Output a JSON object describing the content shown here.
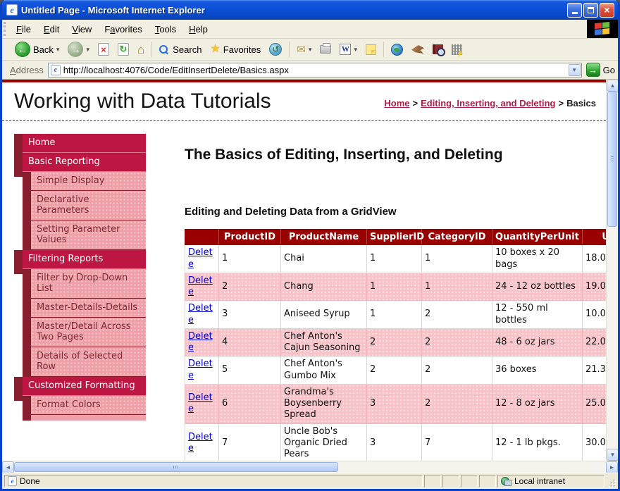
{
  "window": {
    "title": "Untitled Page - Microsoft Internet Explorer"
  },
  "menu": {
    "items": [
      {
        "pre": "",
        "key": "F",
        "post": "ile"
      },
      {
        "pre": "",
        "key": "E",
        "post": "dit"
      },
      {
        "pre": "",
        "key": "V",
        "post": "iew"
      },
      {
        "pre": "F",
        "key": "a",
        "post": "vorites"
      },
      {
        "pre": "",
        "key": "T",
        "post": "ools"
      },
      {
        "pre": "",
        "key": "H",
        "post": "elp"
      }
    ]
  },
  "toolbar": {
    "back": "Back",
    "search": "Search",
    "favorites": "Favorites"
  },
  "address": {
    "label": "Address",
    "url": "http://localhost:4076/Code/EditInsertDelete/Basics.aspx",
    "go": "Go"
  },
  "page": {
    "site_title": "Working with Data Tutorials",
    "breadcrumb": {
      "home": "Home",
      "sep": ">",
      "section": "Editing, Inserting, and Deleting",
      "current": "Basics"
    },
    "sidebar": [
      {
        "label": "Home",
        "level": 1
      },
      {
        "label": "Basic Reporting",
        "level": 1
      },
      {
        "label": "Simple Display",
        "level": 2
      },
      {
        "label": "Declarative Parameters",
        "level": 2
      },
      {
        "label": "Setting Parameter Values",
        "level": 2
      },
      {
        "label": "Filtering Reports",
        "level": 1
      },
      {
        "label": "Filter by Drop-Down List",
        "level": 2
      },
      {
        "label": "Master-Details-Details",
        "level": 2
      },
      {
        "label": "Master/Detail Across Two Pages",
        "level": 2
      },
      {
        "label": "Details of Selected Row",
        "level": 2
      },
      {
        "label": "Customized Formatting",
        "level": 1
      },
      {
        "label": "Format Colors",
        "level": 2
      }
    ],
    "heading": "The Basics of Editing, Inserting, and Deleting",
    "subheading": "Editing and Deleting Data from a GridView",
    "grid": {
      "action_label": "Delete",
      "columns": [
        "",
        "ProductID",
        "ProductName",
        "SupplierID",
        "CategoryID",
        "QuantityPerUnit",
        "Uni"
      ],
      "rows": [
        [
          "1",
          "Chai",
          "1",
          "1",
          "10 boxes x 20 bags",
          "18.0"
        ],
        [
          "2",
          "Chang",
          "1",
          "1",
          "24 - 12 oz bottles",
          "19.0"
        ],
        [
          "3",
          "Aniseed Syrup",
          "1",
          "2",
          "12 - 550 ml bottles",
          "10.0"
        ],
        [
          "4",
          "Chef Anton's Cajun Seasoning",
          "2",
          "2",
          "48 - 6 oz jars",
          "22.0"
        ],
        [
          "5",
          "Chef Anton's Gumbo Mix",
          "2",
          "2",
          "36 boxes",
          "21.3"
        ],
        [
          "6",
          "Grandma's Boysenberry Spread",
          "3",
          "2",
          "12 - 8 oz jars",
          "25.0"
        ],
        [
          "7",
          "Uncle Bob's Organic Dried Pears",
          "3",
          "7",
          "12 - 1 lb pkgs.",
          "30.0"
        ]
      ]
    }
  },
  "statusbar": {
    "status": "Done",
    "zone": "Local intranet"
  },
  "icons": {
    "ie_e": "e",
    "back": "←",
    "forward": "→",
    "stop": "×",
    "refresh": "↻",
    "home": "⌂",
    "star": "★",
    "history": "↺",
    "mail": "✉",
    "dropdown": "▾",
    "go_arrow": "→",
    "up": "▲",
    "down": "▼",
    "left": "◄",
    "right": "►",
    "close": "×"
  },
  "colors": {
    "title_header_red": "#990000",
    "nav_crimson": "#BE1642",
    "nav_dark_maroon": "#871F31",
    "nav_pink": "#EF9FA7",
    "alt_row_pink": "#F8C3C9",
    "link_blue": "#0000CC",
    "breadcrumb_link": "#A91D47"
  }
}
